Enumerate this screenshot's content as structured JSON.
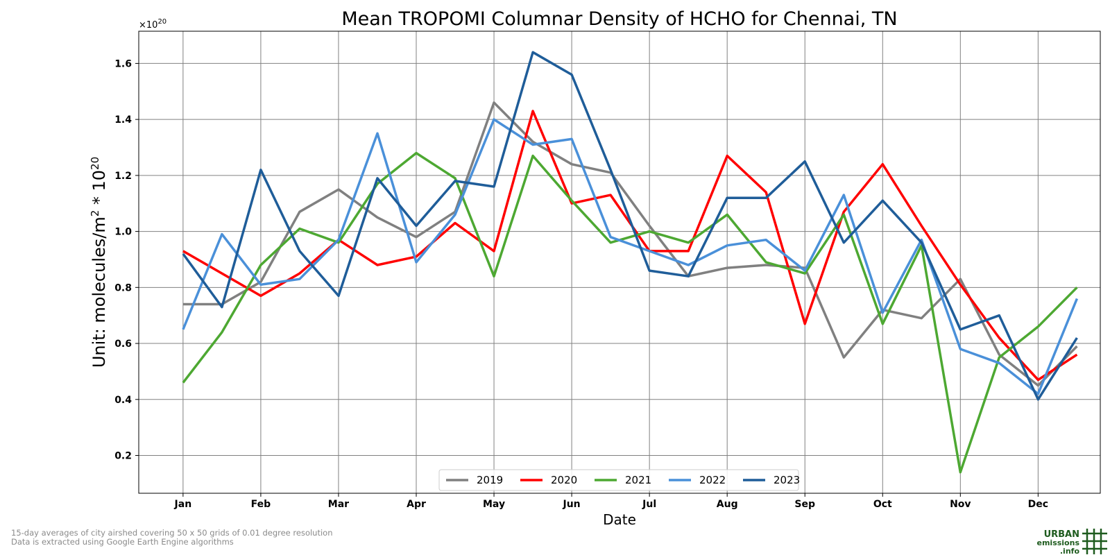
{
  "chart_data": {
    "type": "line",
    "title": "Mean TROPOMI Columnar Density of HCHO for Chennai, TN",
    "xlabel": "Date",
    "ylabel": "Unit: molecules/m",
    "ylabel_sup": "2",
    "ylabel_tail": " * 10",
    "ylabel_sup2": "20",
    "multiplier_base": "×10",
    "multiplier_exp": "20",
    "ylim": [
      0.065,
      1.715
    ],
    "xlim": [
      -0.57,
      11.8
    ],
    "yticks": [
      "0.2",
      "0.4",
      "0.6",
      "0.8",
      "1.0",
      "1.2",
      "1.4",
      "1.6"
    ],
    "months": [
      "Jan",
      "Feb",
      "Mar",
      "Apr",
      "May",
      "Jun",
      "Jul",
      "Aug",
      "Sep",
      "Oct",
      "Nov",
      "Dec"
    ],
    "grid": true,
    "legend_position": "bottom-center",
    "x": [
      0,
      0.5,
      1,
      1.5,
      2,
      2.5,
      3,
      3.5,
      4,
      4.5,
      5,
      5.5,
      6,
      6.5,
      7,
      7.5,
      8,
      8.5,
      9,
      9.5,
      10,
      10.5,
      11,
      11.5
    ],
    "series": [
      {
        "name": "2019",
        "color": "#808080",
        "values": [
          0.74,
          0.74,
          0.82,
          1.07,
          1.15,
          1.05,
          0.98,
          1.07,
          1.46,
          1.32,
          1.24,
          1.21,
          1.02,
          0.84,
          0.87,
          0.88,
          0.87,
          0.55,
          0.72,
          0.69,
          0.83,
          0.56,
          0.45,
          0.59
        ]
      },
      {
        "name": "2020",
        "color": "#ff0000",
        "values": [
          0.93,
          0.85,
          0.77,
          0.85,
          0.97,
          0.88,
          0.91,
          1.03,
          0.93,
          1.43,
          1.1,
          1.13,
          0.93,
          0.93,
          1.27,
          1.14,
          0.67,
          1.07,
          1.24,
          1.02,
          0.81,
          0.62,
          0.47,
          0.56
        ]
      },
      {
        "name": "2021",
        "color": "#4da832",
        "values": [
          0.46,
          0.64,
          0.88,
          1.01,
          0.96,
          1.17,
          1.28,
          1.19,
          0.84,
          1.27,
          1.11,
          0.96,
          1.0,
          0.96,
          1.06,
          0.89,
          0.85,
          1.06,
          0.67,
          0.95,
          0.14,
          0.55,
          0.66,
          0.8
        ]
      },
      {
        "name": "2022",
        "color": "#4a90d9",
        "values": [
          0.65,
          0.99,
          0.81,
          0.83,
          0.97,
          1.35,
          0.89,
          1.06,
          1.4,
          1.31,
          1.33,
          0.98,
          0.93,
          0.88,
          0.95,
          0.97,
          0.86,
          1.13,
          0.71,
          0.97,
          0.58,
          0.53,
          0.42,
          0.76
        ]
      },
      {
        "name": "2023",
        "color": "#1f5d99",
        "values": [
          0.92,
          0.73,
          1.22,
          0.93,
          0.77,
          1.19,
          1.02,
          1.18,
          1.16,
          1.64,
          1.56,
          1.22,
          0.86,
          0.84,
          1.12,
          1.12,
          1.25,
          0.96,
          1.11,
          0.96,
          0.65,
          0.7,
          0.4,
          0.62
        ]
      }
    ]
  },
  "footer": {
    "line1": "15-day averages of city airshed covering 50 x 50 grids of 0.01 degree resolution",
    "line2": "Data is extracted using Google Earth Engine algorithms"
  },
  "logo": {
    "line1": "URBAN",
    "line2": "emissions",
    "line3": ".info"
  }
}
